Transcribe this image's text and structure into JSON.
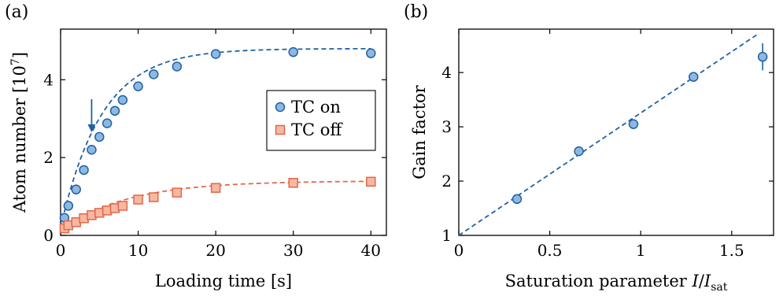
{
  "panels": {
    "a_label": "(a)",
    "b_label": "(b)"
  },
  "colors": {
    "on_fill": "#8fb8e0",
    "on_stroke": "#1f62a3",
    "off_fill": "#f6b8a3",
    "off_stroke": "#e2674a"
  },
  "chart_data": [
    {
      "type": "scatter",
      "xlabel": "Loading time [s]",
      "ylabel": "Atom number [10^7]",
      "ylabel_main": "Atom number [10",
      "ylabel_exp": "7",
      "ylabel_close": "]",
      "xlim": [
        0,
        42
      ],
      "ylim": [
        0,
        5.3
      ],
      "xticks": [
        0,
        10,
        20,
        30,
        40
      ],
      "yticks": [
        0,
        2,
        4
      ],
      "grid": false,
      "legend_position": "right",
      "annotation": "arrow pointing down at t = 4 s",
      "arrow_x": 4,
      "arrow_y_top": 3.5,
      "arrow_y_bottom": 2.65,
      "series": [
        {
          "name": "TC on",
          "marker": "circle",
          "x": [
            0.5,
            1,
            2,
            3,
            4,
            5,
            6,
            7,
            8,
            10,
            12,
            15,
            20,
            30,
            40
          ],
          "y": [
            0.45,
            0.76,
            1.18,
            1.68,
            2.2,
            2.53,
            2.88,
            3.2,
            3.48,
            3.83,
            4.14,
            4.34,
            4.66,
            4.71,
            4.68
          ],
          "fit": {
            "A": 4.8,
            "tau": 5.3,
            "y0": 0.2
          }
        },
        {
          "name": "TC off",
          "marker": "square",
          "x": [
            0.5,
            1,
            2,
            3,
            4,
            5,
            6,
            7,
            8,
            10,
            12,
            15,
            20,
            30,
            40
          ],
          "y": [
            0.18,
            0.26,
            0.34,
            0.44,
            0.52,
            0.58,
            0.64,
            0.7,
            0.76,
            0.92,
            0.98,
            1.1,
            1.22,
            1.35,
            1.38
          ],
          "fit": {
            "A": 1.4,
            "tau": 8.5,
            "y0": 0.12
          }
        }
      ]
    },
    {
      "type": "scatter",
      "xlabel": "Saturation parameter I/I_sat",
      "xlabel_main": "Saturation parameter ",
      "xlabel_I": "I",
      "xlabel_slash": "/",
      "xlabel_I2": "I",
      "xlabel_sub": "sat",
      "ylabel": "Gain factor",
      "xlim": [
        0,
        1.73
      ],
      "ylim": [
        1,
        4.8
      ],
      "xticks": [
        0,
        0.5,
        1,
        1.5
      ],
      "yticks": [
        1,
        2,
        3,
        4
      ],
      "grid": false,
      "series": [
        {
          "marker": "circle",
          "x": [
            0.32,
            0.66,
            0.96,
            1.29,
            1.67
          ],
          "y": [
            1.67,
            2.55,
            3.05,
            3.92,
            4.29
          ],
          "yerr": [
            0,
            0,
            0,
            0.08,
            0.25
          ]
        }
      ],
      "fit_line": {
        "x": [
          0,
          1.64
        ],
        "y": [
          1,
          4.7
        ]
      }
    }
  ]
}
